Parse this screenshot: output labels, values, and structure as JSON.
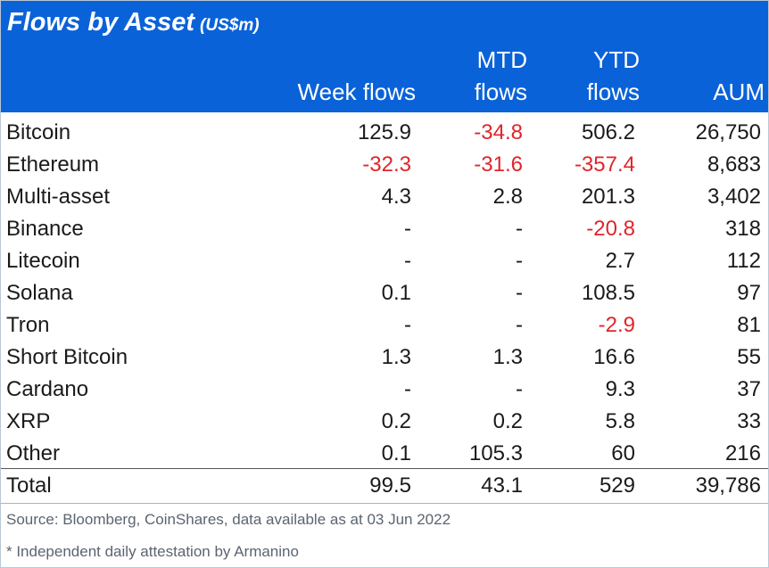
{
  "title": "Flows by Asset",
  "unit": "(US$m)",
  "columns": {
    "name": "",
    "week": [
      "Week flows"
    ],
    "mtd": [
      "MTD",
      "flows"
    ],
    "ytd": [
      "YTD",
      "flows"
    ],
    "aum": [
      "AUM"
    ]
  },
  "chart_data": {
    "type": "table",
    "title": "Flows by Asset (US$m)",
    "columns": [
      "Week flows",
      "MTD flows",
      "YTD flows",
      "AUM"
    ],
    "rows": [
      {
        "asset": "Bitcoin",
        "week": "125.9",
        "mtd": "-34.8",
        "ytd": "506.2",
        "aum": "26,750"
      },
      {
        "asset": "Ethereum",
        "week": "-32.3",
        "mtd": "-31.6",
        "ytd": "-357.4",
        "aum": "8,683"
      },
      {
        "asset": "Multi-asset",
        "week": "4.3",
        "mtd": "2.8",
        "ytd": "201.3",
        "aum": "3,402"
      },
      {
        "asset": "Binance",
        "week": "-",
        "mtd": "-",
        "ytd": "-20.8",
        "aum": "318"
      },
      {
        "asset": "Litecoin",
        "week": "-",
        "mtd": "-",
        "ytd": "2.7",
        "aum": "112"
      },
      {
        "asset": "Solana",
        "week": "0.1",
        "mtd": "-",
        "ytd": "108.5",
        "aum": "97"
      },
      {
        "asset": "Tron",
        "week": "-",
        "mtd": "-",
        "ytd": "-2.9",
        "aum": "81"
      },
      {
        "asset": "Short Bitcoin",
        "week": "1.3",
        "mtd": "1.3",
        "ytd": "16.6",
        "aum": "55"
      },
      {
        "asset": "Cardano",
        "week": "-",
        "mtd": "-",
        "ytd": "9.3",
        "aum": "37"
      },
      {
        "asset": "XRP",
        "week": "0.2",
        "mtd": "0.2",
        "ytd": "5.8",
        "aum": "33"
      },
      {
        "asset": "Other",
        "week": "0.1",
        "mtd": "105.3",
        "ytd": "60",
        "aum": "216"
      }
    ],
    "total": {
      "asset": "Total",
      "week": "99.5",
      "mtd": "43.1",
      "ytd": "529",
      "aum": "39,786"
    }
  },
  "source": "Source: Bloomberg, CoinShares, data available as at 03 Jun 2022",
  "footnote": "* Independent daily attestation by Armanino",
  "colors": {
    "header_bg": "#0a62d8",
    "header_text": "#ffffff",
    "negative": "#e0252a",
    "text": "#1a1a1a",
    "footer_text": "#5b6470"
  }
}
